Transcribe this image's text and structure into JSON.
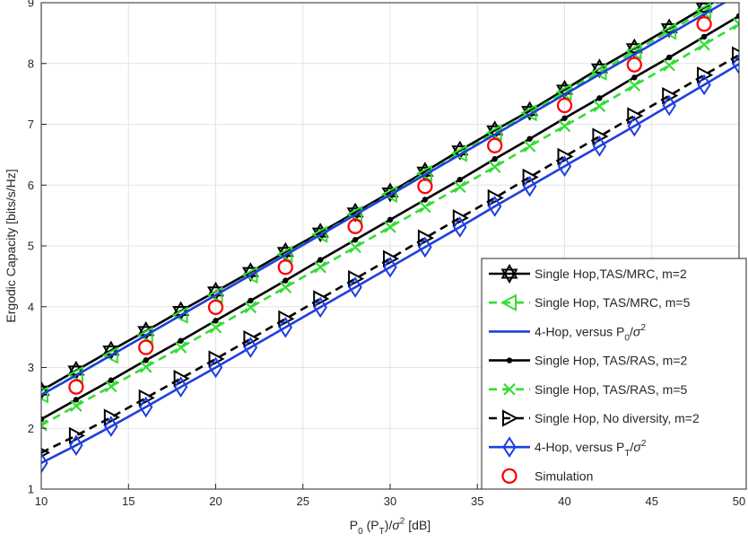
{
  "chart_data": {
    "type": "line",
    "xlabel_parts": [
      "P",
      "0",
      " (P",
      "T",
      ")/",
      "σ",
      "2",
      " [dB]"
    ],
    "ylabel": "Ergodic Capacity [bits/s/Hz]",
    "xlim": [
      10,
      50
    ],
    "ylim": [
      1,
      9
    ],
    "x_ticks": [
      "10",
      "15",
      "20",
      "25",
      "30",
      "35",
      "40",
      "45",
      "50"
    ],
    "y_ticks": [
      "1",
      "2",
      "3",
      "4",
      "5",
      "6",
      "7",
      "8",
      "9"
    ],
    "grid": true,
    "legend_position": "bottom-right",
    "x": [
      10,
      12,
      14,
      16,
      18,
      20,
      22,
      24,
      26,
      28,
      30,
      32,
      34,
      36,
      38,
      40,
      42,
      44,
      46,
      48,
      50
    ],
    "series": [
      {
        "legend_parts": [
          "Single Hop,TAS/MRC, m=2"
        ],
        "color": "#000000",
        "dash": "solid",
        "marker": "hexagram",
        "values": [
          2.62,
          2.95,
          3.28,
          3.6,
          3.93,
          4.25,
          4.57,
          4.9,
          5.22,
          5.55,
          5.88,
          6.22,
          6.57,
          6.9,
          7.22,
          7.57,
          7.92,
          8.25,
          8.58,
          8.92,
          9.25
        ]
      },
      {
        "legend_parts": [
          "Single Hop, TAS/MRC, m=5"
        ],
        "color": "#33dd33",
        "dash": "dashed",
        "marker": "triangle-left",
        "values": [
          2.55,
          2.88,
          3.2,
          3.53,
          3.86,
          4.19,
          4.52,
          4.86,
          5.19,
          5.52,
          5.85,
          6.19,
          6.52,
          6.86,
          7.19,
          7.53,
          7.86,
          8.2,
          8.53,
          8.87,
          9.2
        ]
      },
      {
        "legend_parts": [
          "4-Hop, versus P",
          "0",
          "/",
          "σ",
          "2"
        ],
        "color": "#1f3fdf",
        "dash": "solid",
        "marker": "none",
        "values": [
          2.55,
          2.87,
          3.2,
          3.53,
          3.86,
          4.19,
          4.52,
          4.85,
          5.18,
          5.51,
          5.84,
          6.17,
          6.5,
          6.83,
          7.16,
          7.49,
          7.82,
          8.15,
          8.48,
          8.81,
          9.14
        ]
      },
      {
        "legend_parts": [
          "Single Hop, TAS/RAS, m=2"
        ],
        "color": "#000000",
        "dash": "solid",
        "marker": "dot",
        "values": [
          2.15,
          2.47,
          2.79,
          3.12,
          3.44,
          3.77,
          4.1,
          4.43,
          4.77,
          5.1,
          5.43,
          5.76,
          6.09,
          6.43,
          6.76,
          7.1,
          7.43,
          7.77,
          8.1,
          8.44,
          8.78
        ]
      },
      {
        "legend_parts": [
          "Single Hop, TAS/RAS, m=5"
        ],
        "color": "#33dd33",
        "dash": "dashed",
        "marker": "x",
        "values": [
          2.05,
          2.37,
          2.69,
          3.01,
          3.33,
          3.66,
          3.99,
          4.32,
          4.65,
          4.98,
          5.31,
          5.64,
          5.97,
          6.3,
          6.64,
          6.97,
          7.3,
          7.64,
          7.97,
          8.31,
          8.65
        ]
      },
      {
        "legend_parts": [
          "Single Hop, No diversity, m=2"
        ],
        "color": "#000000",
        "dash": "dashed",
        "marker": "triangle-right",
        "values": [
          1.6,
          1.88,
          2.18,
          2.5,
          2.82,
          3.14,
          3.47,
          3.8,
          4.13,
          4.46,
          4.79,
          5.13,
          5.46,
          5.79,
          6.13,
          6.47,
          6.8,
          7.14,
          7.47,
          7.81,
          8.14
        ]
      },
      {
        "legend_parts": [
          "4-Hop, versus P",
          "T",
          "/",
          "σ",
          "2"
        ],
        "color": "#1f3fdf",
        "dash": "solid",
        "marker": "diamond",
        "values": [
          1.43,
          1.72,
          2.03,
          2.35,
          2.68,
          3.0,
          3.33,
          3.66,
          3.99,
          4.32,
          4.65,
          4.98,
          5.31,
          5.65,
          5.98,
          6.31,
          6.64,
          6.97,
          7.31,
          7.65,
          7.99
        ]
      },
      {
        "legend_parts": [
          "Simulation"
        ],
        "color": "#ff0000",
        "dash": "none",
        "marker": "circle",
        "x": [
          12,
          16,
          20,
          24,
          28,
          32,
          36,
          40,
          44,
          48
        ],
        "values": [
          2.68,
          3.33,
          3.99,
          4.65,
          5.32,
          5.98,
          6.65,
          7.31,
          7.98,
          8.65
        ]
      }
    ]
  }
}
